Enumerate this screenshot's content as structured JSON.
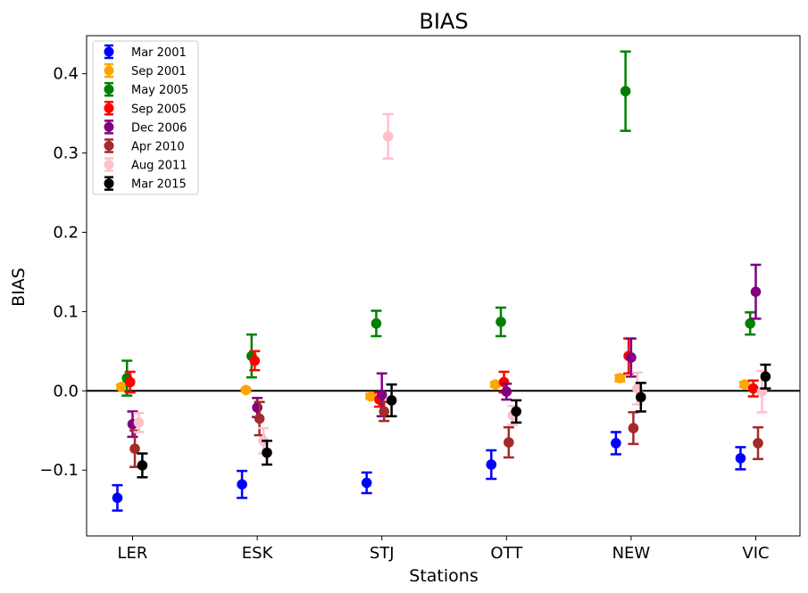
{
  "chart_data": {
    "type": "scatter",
    "title": "BIAS",
    "xlabel": "Stations",
    "ylabel": "BIAS",
    "categories": [
      "LER",
      "ESK",
      "STJ",
      "OTT",
      "NEW",
      "VIC"
    ],
    "ylim": [
      -0.183,
      0.448
    ],
    "yticks": [
      -0.1,
      0.0,
      0.1,
      0.2,
      0.3,
      0.4
    ],
    "ytick_labels": [
      "−0.1",
      "0.0",
      "0.1",
      "0.2",
      "0.3",
      "0.4"
    ],
    "reference_line": 0.0,
    "legend_position": "top-left",
    "grid": false,
    "series": [
      {
        "name": "Mar 2001",
        "color": "#0000ff",
        "values": [
          -0.135,
          -0.118,
          -0.116,
          -0.093,
          -0.066,
          -0.085
        ],
        "errors": [
          0.016,
          0.017,
          0.013,
          0.018,
          0.014,
          0.014
        ]
      },
      {
        "name": "Sep 2001",
        "color": "#ffa500",
        "values": [
          0.005,
          0.001,
          -0.007,
          0.008,
          0.016,
          0.008
        ],
        "errors": [
          0.003,
          0.002,
          0.003,
          0.003,
          0.004,
          0.003
        ]
      },
      {
        "name": "May 2005",
        "color": "#008000",
        "values": [
          0.016,
          0.044,
          0.085,
          0.087,
          0.378,
          0.085
        ],
        "errors": [
          0.022,
          0.027,
          0.016,
          0.018,
          0.05,
          0.014
        ]
      },
      {
        "name": "Sep 2005",
        "color": "#ff0000",
        "values": [
          0.011,
          0.038,
          -0.011,
          0.011,
          0.044,
          0.003
        ],
        "errors": [
          0.013,
          0.012,
          0.009,
          0.013,
          0.022,
          0.01
        ]
      },
      {
        "name": "Dec 2006",
        "color": "#800080",
        "values": [
          -0.042,
          -0.021,
          -0.005,
          -0.001,
          0.042,
          0.125
        ],
        "errors": [
          0.016,
          0.012,
          0.027,
          0.01,
          0.024,
          0.034
        ]
      },
      {
        "name": "Apr 2010",
        "color": "#a52a2a",
        "values": [
          -0.073,
          -0.035,
          -0.026,
          -0.065,
          -0.047,
          -0.066
        ],
        "errors": [
          0.023,
          0.021,
          0.012,
          0.019,
          0.02,
          0.02
        ]
      },
      {
        "name": "Aug 2011",
        "color": "#ffc0cb",
        "values": [
          -0.04,
          -0.063,
          0.321,
          -0.031,
          0.003,
          -0.001
        ],
        "errors": [
          0.012,
          0.016,
          0.028,
          0.012,
          0.02,
          0.026
        ]
      },
      {
        "name": "Mar 2015",
        "color": "#000000",
        "values": [
          -0.094,
          -0.078,
          -0.012,
          -0.026,
          -0.008,
          0.018
        ],
        "errors": [
          0.015,
          0.015,
          0.02,
          0.014,
          0.018,
          0.015
        ]
      }
    ]
  }
}
